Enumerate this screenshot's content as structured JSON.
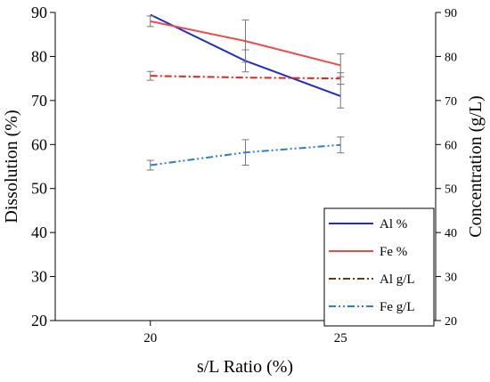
{
  "chart_data": {
    "type": "line",
    "xlabel": "s/L Ratio (%)",
    "ylabel_left": "Dissolution (%)",
    "ylabel_right": "Concentration (g/L)",
    "xlim": [
      17.5,
      27.5
    ],
    "ylim_left": [
      20,
      90
    ],
    "ylim_right": [
      20,
      90
    ],
    "x_ticks": [
      20,
      25
    ],
    "y_ticks_left": [
      20,
      30,
      40,
      50,
      60,
      70,
      80,
      90
    ],
    "y_ticks_right": [
      20,
      30,
      40,
      50,
      60,
      70,
      80,
      90
    ],
    "x": [
      20,
      22.5,
      25
    ],
    "series": [
      {
        "name": "Al %",
        "axis": "left",
        "color": "#1f2fbf",
        "dash": "solid",
        "values": [
          89.5,
          79.0,
          71.0
        ],
        "errors": [
          0,
          2.5,
          2.7
        ]
      },
      {
        "name": "Fe %",
        "axis": "left",
        "color": "#ee4a4a",
        "dash": "solid",
        "values": [
          88.0,
          83.5,
          78.0
        ],
        "errors": [
          1.2,
          4.8,
          2.6
        ]
      },
      {
        "name": "Al g/L",
        "axis": "right",
        "color": "#e8231a",
        "dash": "dashdot",
        "values": [
          75.6,
          75.2,
          75.0
        ],
        "errors": [
          1.0,
          0,
          1.3
        ]
      },
      {
        "name": "Fe g/L",
        "axis": "right",
        "color": "#2a7fd0",
        "dash": "dashdotdot",
        "values": [
          55.3,
          58.2,
          59.9
        ],
        "errors": [
          1.1,
          2.9,
          1.8
        ]
      }
    ],
    "legend": {
      "position": "bottom-right",
      "entries": [
        {
          "label": "Al %",
          "color": "#1f2fbf",
          "dash": "solid"
        },
        {
          "label": "Fe %",
          "color": "#ee4a4a",
          "dash": "solid"
        },
        {
          "label": "Al g/L",
          "color": "#6b3a12",
          "dash": "dashdot"
        },
        {
          "label": "Fe g/L",
          "color": "#2a7fd0",
          "dash": "dashdotdot"
        }
      ]
    },
    "grid": false
  }
}
